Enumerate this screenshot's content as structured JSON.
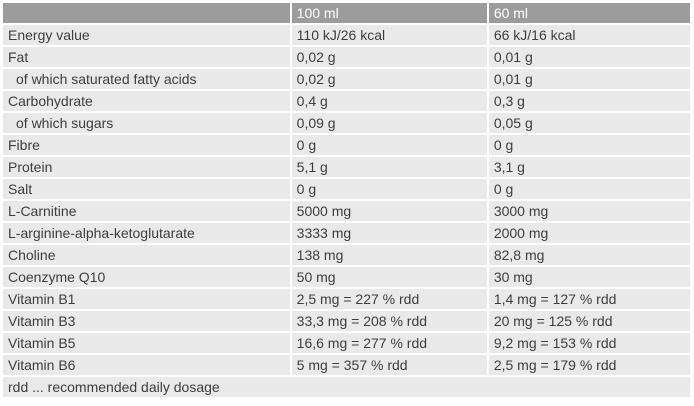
{
  "table": {
    "header": {
      "label_col": "",
      "col_100ml": "100 ml",
      "col_60ml": "60 ml"
    },
    "rows": [
      {
        "label": "Energy value",
        "v100": "110 kJ/26 kcal",
        "v60": "66 kJ/16 kcal",
        "indent": false
      },
      {
        "label": "Fat",
        "v100": "0,02 g",
        "v60": "0,01 g",
        "indent": false
      },
      {
        "label": "of which saturated fatty acids",
        "v100": "0,02 g",
        "v60": "0,01 g",
        "indent": true
      },
      {
        "label": "Carbohydrate",
        "v100": "0,4 g",
        "v60": "0,3 g",
        "indent": false
      },
      {
        "label": "of which sugars",
        "v100": "0,09 g",
        "v60": "0,05 g",
        "indent": true
      },
      {
        "label": "Fibre",
        "v100": "0 g",
        "v60": "0 g",
        "indent": false
      },
      {
        "label": "Protein",
        "v100": "5,1 g",
        "v60": "3,1 g",
        "indent": false
      },
      {
        "label": "Salt",
        "v100": "0 g",
        "v60": "0 g",
        "indent": false
      },
      {
        "label": "L-Carnitine",
        "v100": "5000 mg",
        "v60": "3000 mg",
        "indent": false
      },
      {
        "label": "L-arginine-alpha-ketoglutarate",
        "v100": "3333 mg",
        "v60": "2000 mg",
        "indent": false
      },
      {
        "label": "Choline",
        "v100": "138 mg",
        "v60": "82,8 mg",
        "indent": false
      },
      {
        "label": "Coenzyme Q10",
        "v100": "50 mg",
        "v60": "30 mg",
        "indent": false
      },
      {
        "label": "Vitamin B1",
        "v100": "2,5 mg = 227 % rdd",
        "v60": "1,4 mg = 127 % rdd",
        "indent": false
      },
      {
        "label": "Vitamin B3",
        "v100": "33,3 mg = 208 % rdd",
        "v60": "20 mg = 125 % rdd",
        "indent": false
      },
      {
        "label": "Vitamin B5",
        "v100": "16,6 mg = 277 % rdd",
        "v60": "9,2 mg = 153 % rdd",
        "indent": false
      },
      {
        "label": "Vitamin B6",
        "v100": "5 mg = 357 % rdd",
        "v60": "2,5 mg = 179 % rdd",
        "indent": false
      }
    ],
    "footer_note": "rdd ... recommended daily dosage"
  },
  "colors": {
    "header_bg": "#9c9c9c",
    "header_text": "#ffffff",
    "row_bg": "#e9e9e9",
    "text": "#3d3d3d",
    "gap": "#ffffff"
  }
}
